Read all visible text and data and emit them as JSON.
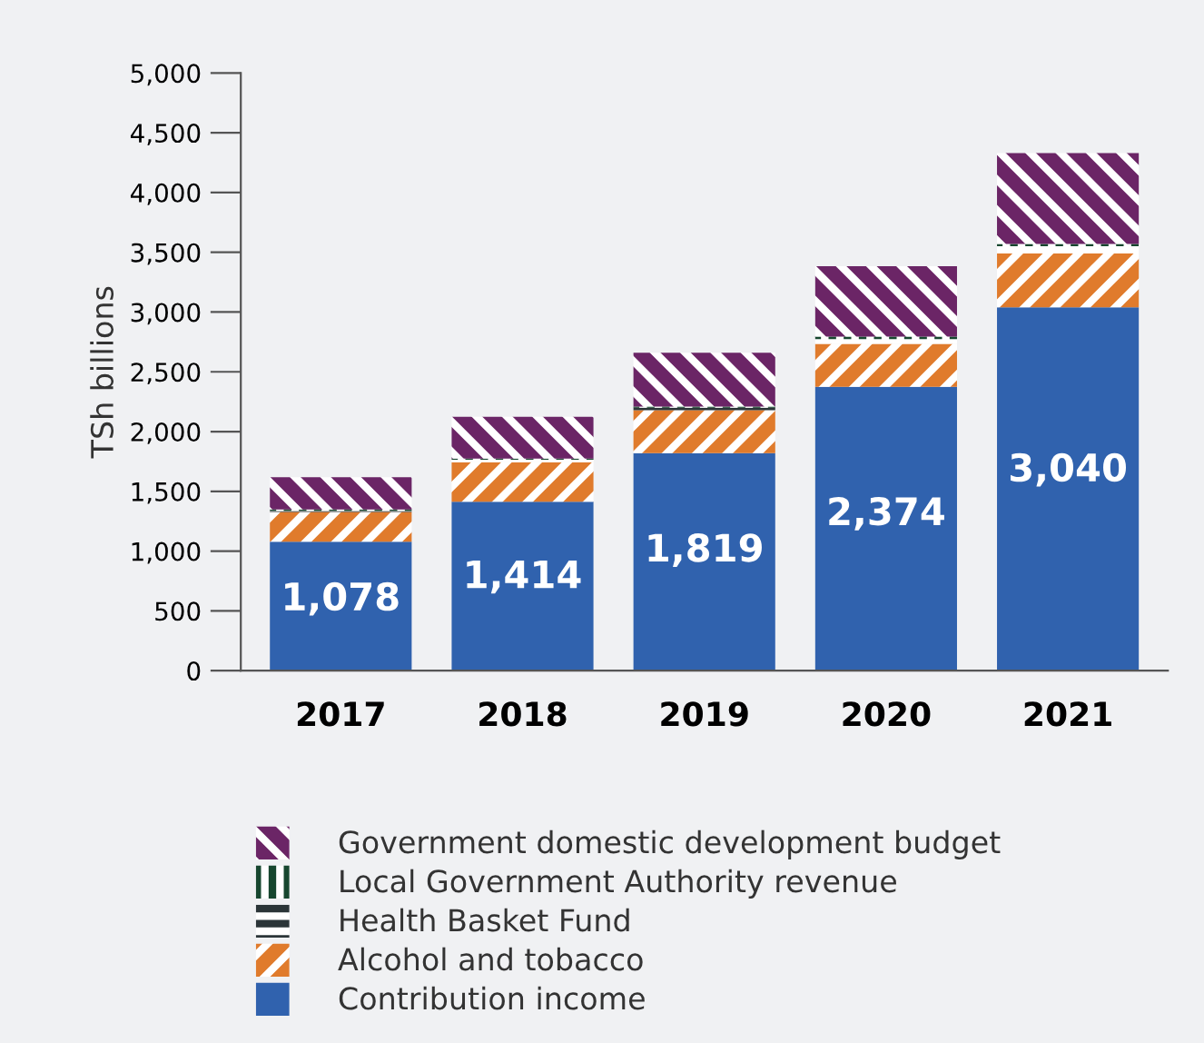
{
  "chart_data": {
    "type": "bar",
    "stacked": true,
    "ylabel": "TSh billions",
    "categories": [
      "2017",
      "2018",
      "2019",
      "2020",
      "2021"
    ],
    "ylim": [
      0,
      5000
    ],
    "yticks": [
      0,
      {
        "value": 500,
        "label": "500"
      },
      {
        "value": 1000,
        "label": "1,000"
      },
      {
        "value": 1500,
        "label": "1,500"
      },
      {
        "value": 2000,
        "label": "2,000"
      },
      {
        "value": 2500,
        "label": "2,500"
      },
      {
        "value": 3000,
        "label": "3,000"
      },
      {
        "value": 3500,
        "label": "3,500"
      },
      {
        "value": 4000,
        "label": "4,000"
      },
      {
        "value": 4500,
        "label": "4,500"
      },
      {
        "value": 5000,
        "label": "5,000"
      }
    ],
    "grid": false,
    "legend": "bottom",
    "series": [
      {
        "name": "Contribution income",
        "color": "#3062ae",
        "values": [
          1078,
          1414,
          1819,
          2374,
          3040
        ],
        "value_labels": [
          "1,078",
          "1,414",
          "1,819",
          "2,374",
          "3,040"
        ]
      },
      {
        "name": "Alcohol and tobacco",
        "color": "#e07b2c",
        "values": [
          250,
          330,
          360,
          360,
          450
        ]
      },
      {
        "name": "Health Basket Fund",
        "color": "#2b3538",
        "values": [
          10,
          20,
          20,
          40,
          60
        ]
      },
      {
        "name": "Local Government Authority revenue",
        "color": "#17472f",
        "values": [
          10,
          10,
          10,
          20,
          20
        ]
      },
      {
        "name": "Government domestic development budget",
        "color": "#6b2566",
        "values": [
          270,
          350,
          450,
          590,
          760
        ]
      }
    ]
  }
}
